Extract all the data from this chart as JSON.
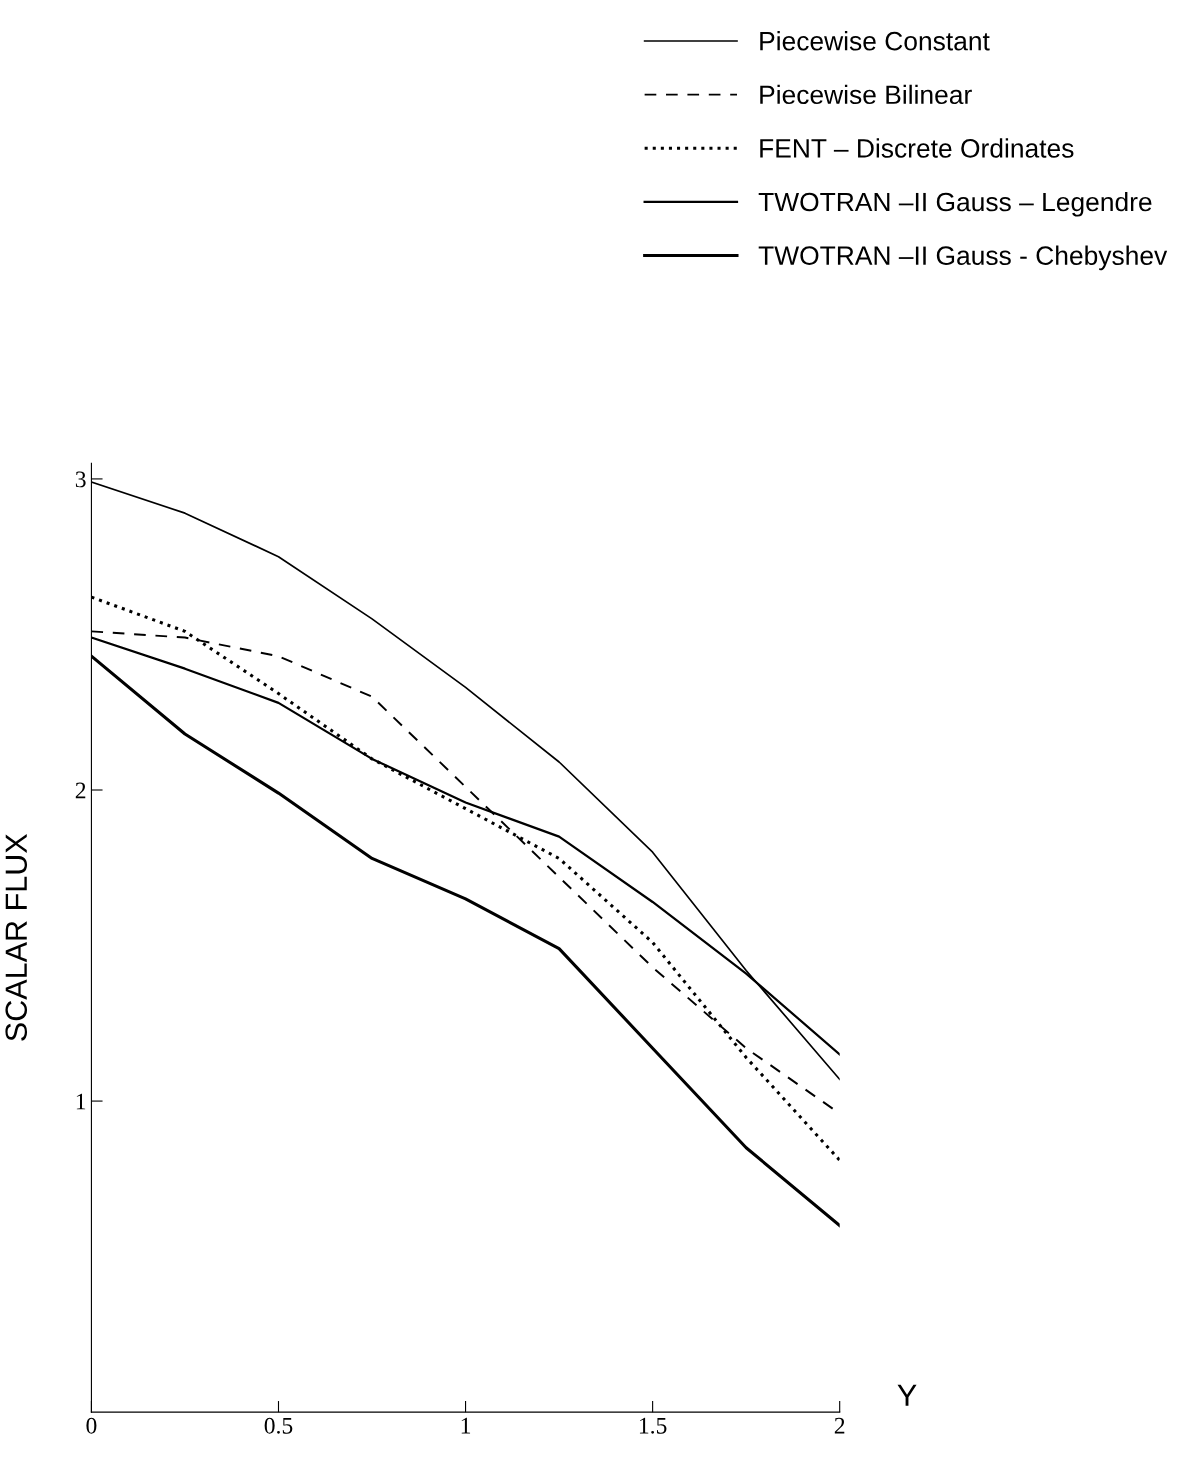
{
  "chart_data": {
    "type": "line",
    "xlabel": "Y",
    "ylabel": "SCALAR FLUX",
    "xlim": [
      0,
      2
    ],
    "ylim": [
      0,
      3.05
    ],
    "xticks": [
      0,
      0.5,
      1,
      1.5,
      2
    ],
    "yticks": [
      1,
      2,
      3
    ],
    "grid": false,
    "legend": "top right",
    "marker": "none",
    "x": [
      0,
      0.25,
      0.5,
      0.75,
      1,
      1.25,
      1.5,
      1.75,
      2
    ],
    "series": [
      {
        "name": "Piecewise Constant",
        "color": "#000000",
        "line_style": "solid",
        "values": [
          2.99,
          2.89,
          2.75,
          2.55,
          2.33,
          2.09,
          1.8,
          1.42,
          1.07
        ]
      },
      {
        "name": "Piecewise Bilinear",
        "color": "#000000",
        "line_style": "dashed",
        "values": [
          2.51,
          2.49,
          2.43,
          2.3,
          2.01,
          1.72,
          1.43,
          1.17,
          0.96
        ]
      },
      {
        "name": "FENT – Discrete Ordinates",
        "color": "#000000",
        "line_style": "dotted",
        "values": [
          2.62,
          2.51,
          2.31,
          2.1,
          1.94,
          1.78,
          1.51,
          1.14,
          0.81
        ]
      },
      {
        "name": "TWOTRAN –II Gauss – Legendre",
        "color": "#000000",
        "line_style": "solid",
        "values": [
          2.49,
          2.39,
          2.28,
          2.1,
          1.96,
          1.85,
          1.64,
          1.41,
          1.15
        ]
      },
      {
        "name": "TWOTRAN –II Gauss - Chebyshev",
        "color": "#000000",
        "line_style": "solid",
        "values": [
          2.43,
          2.18,
          1.99,
          1.78,
          1.65,
          1.49,
          1.17,
          0.85,
          0.6
        ]
      }
    ]
  }
}
